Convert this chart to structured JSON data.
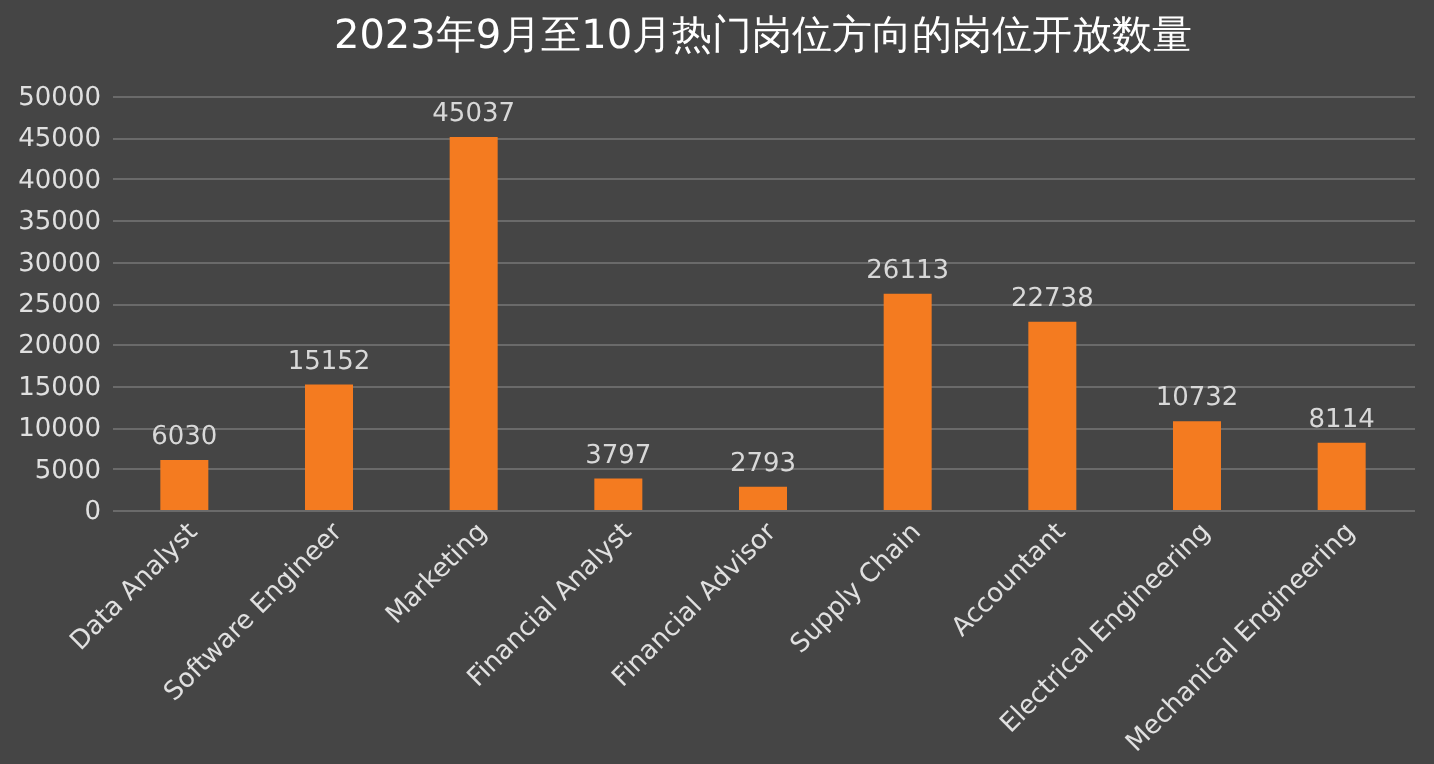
{
  "chart_data": {
    "type": "bar",
    "title": "2023年9月至10月热门岗位方向的岗位开放数量",
    "categories": [
      "Data Analyst",
      "Software Engineer",
      "Marketing",
      "Financial Analyst",
      "Financial Advisor",
      "Supply Chain",
      "Accountant",
      "Electrical Engineering",
      "Mechanical Engineering"
    ],
    "values": [
      6030,
      15152,
      45037,
      3797,
      2793,
      26113,
      22738,
      10732,
      8114
    ],
    "color": "#f47b20",
    "ylim": [
      0,
      50000
    ],
    "yticks": [
      0,
      5000,
      10000,
      15000,
      20000,
      25000,
      30000,
      35000,
      40000,
      45000,
      50000
    ],
    "grid": "y",
    "data_labels": true
  }
}
